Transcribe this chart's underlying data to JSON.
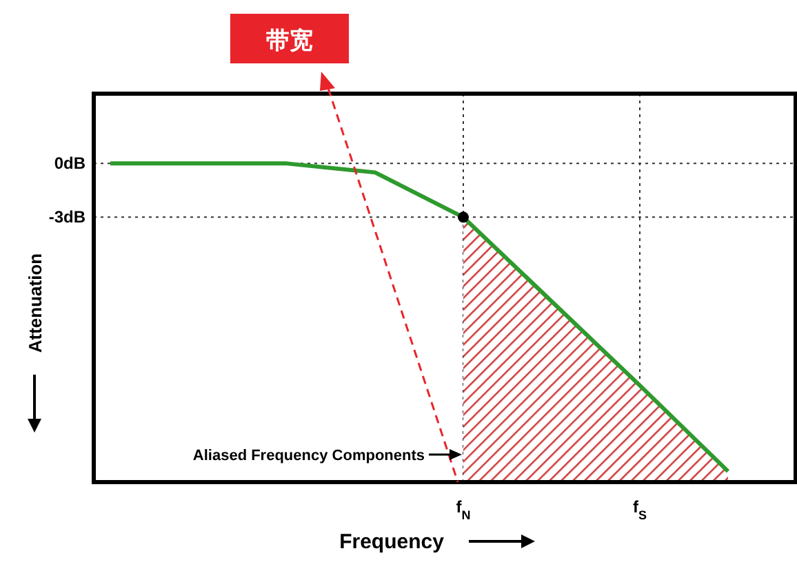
{
  "chart_data": {
    "type": "line",
    "xlabel": "Frequency",
    "ylabel": "Attenuation",
    "categories": [
      null,
      null,
      null,
      null,
      "f$_{N}$",
      null,
      "f$_{S}$",
      null
    ],
    "ylim": [
      -17.8,
      3.9
    ],
    "yticks": [
      {
        "value": 0,
        "label": "0dB"
      },
      {
        "value": -3,
        "label": "-3dB"
      }
    ],
    "grid": true,
    "line_style": "solid",
    "annotations": [
      "带宽",
      "Aliased Frequency Components"
    ],
    "series": [
      {
        "color": "#2e9a2e",
        "values": [
          0,
          0,
          0,
          -0.5,
          -3,
          -7.7,
          -12.4,
          -17.2
        ],
        "lower": [
          null,
          null,
          null,
          null,
          -17.8,
          -17.8,
          -17.8,
          -17.8
        ],
        "upper": [
          null,
          null,
          null,
          null,
          -3,
          -7.7,
          -12.4,
          -17.2
        ]
      },
      {
        "type": "scatter",
        "color": "#000000",
        "values": [
          null,
          null,
          null,
          null,
          -3,
          null,
          null,
          null
        ]
      }
    ]
  }
}
